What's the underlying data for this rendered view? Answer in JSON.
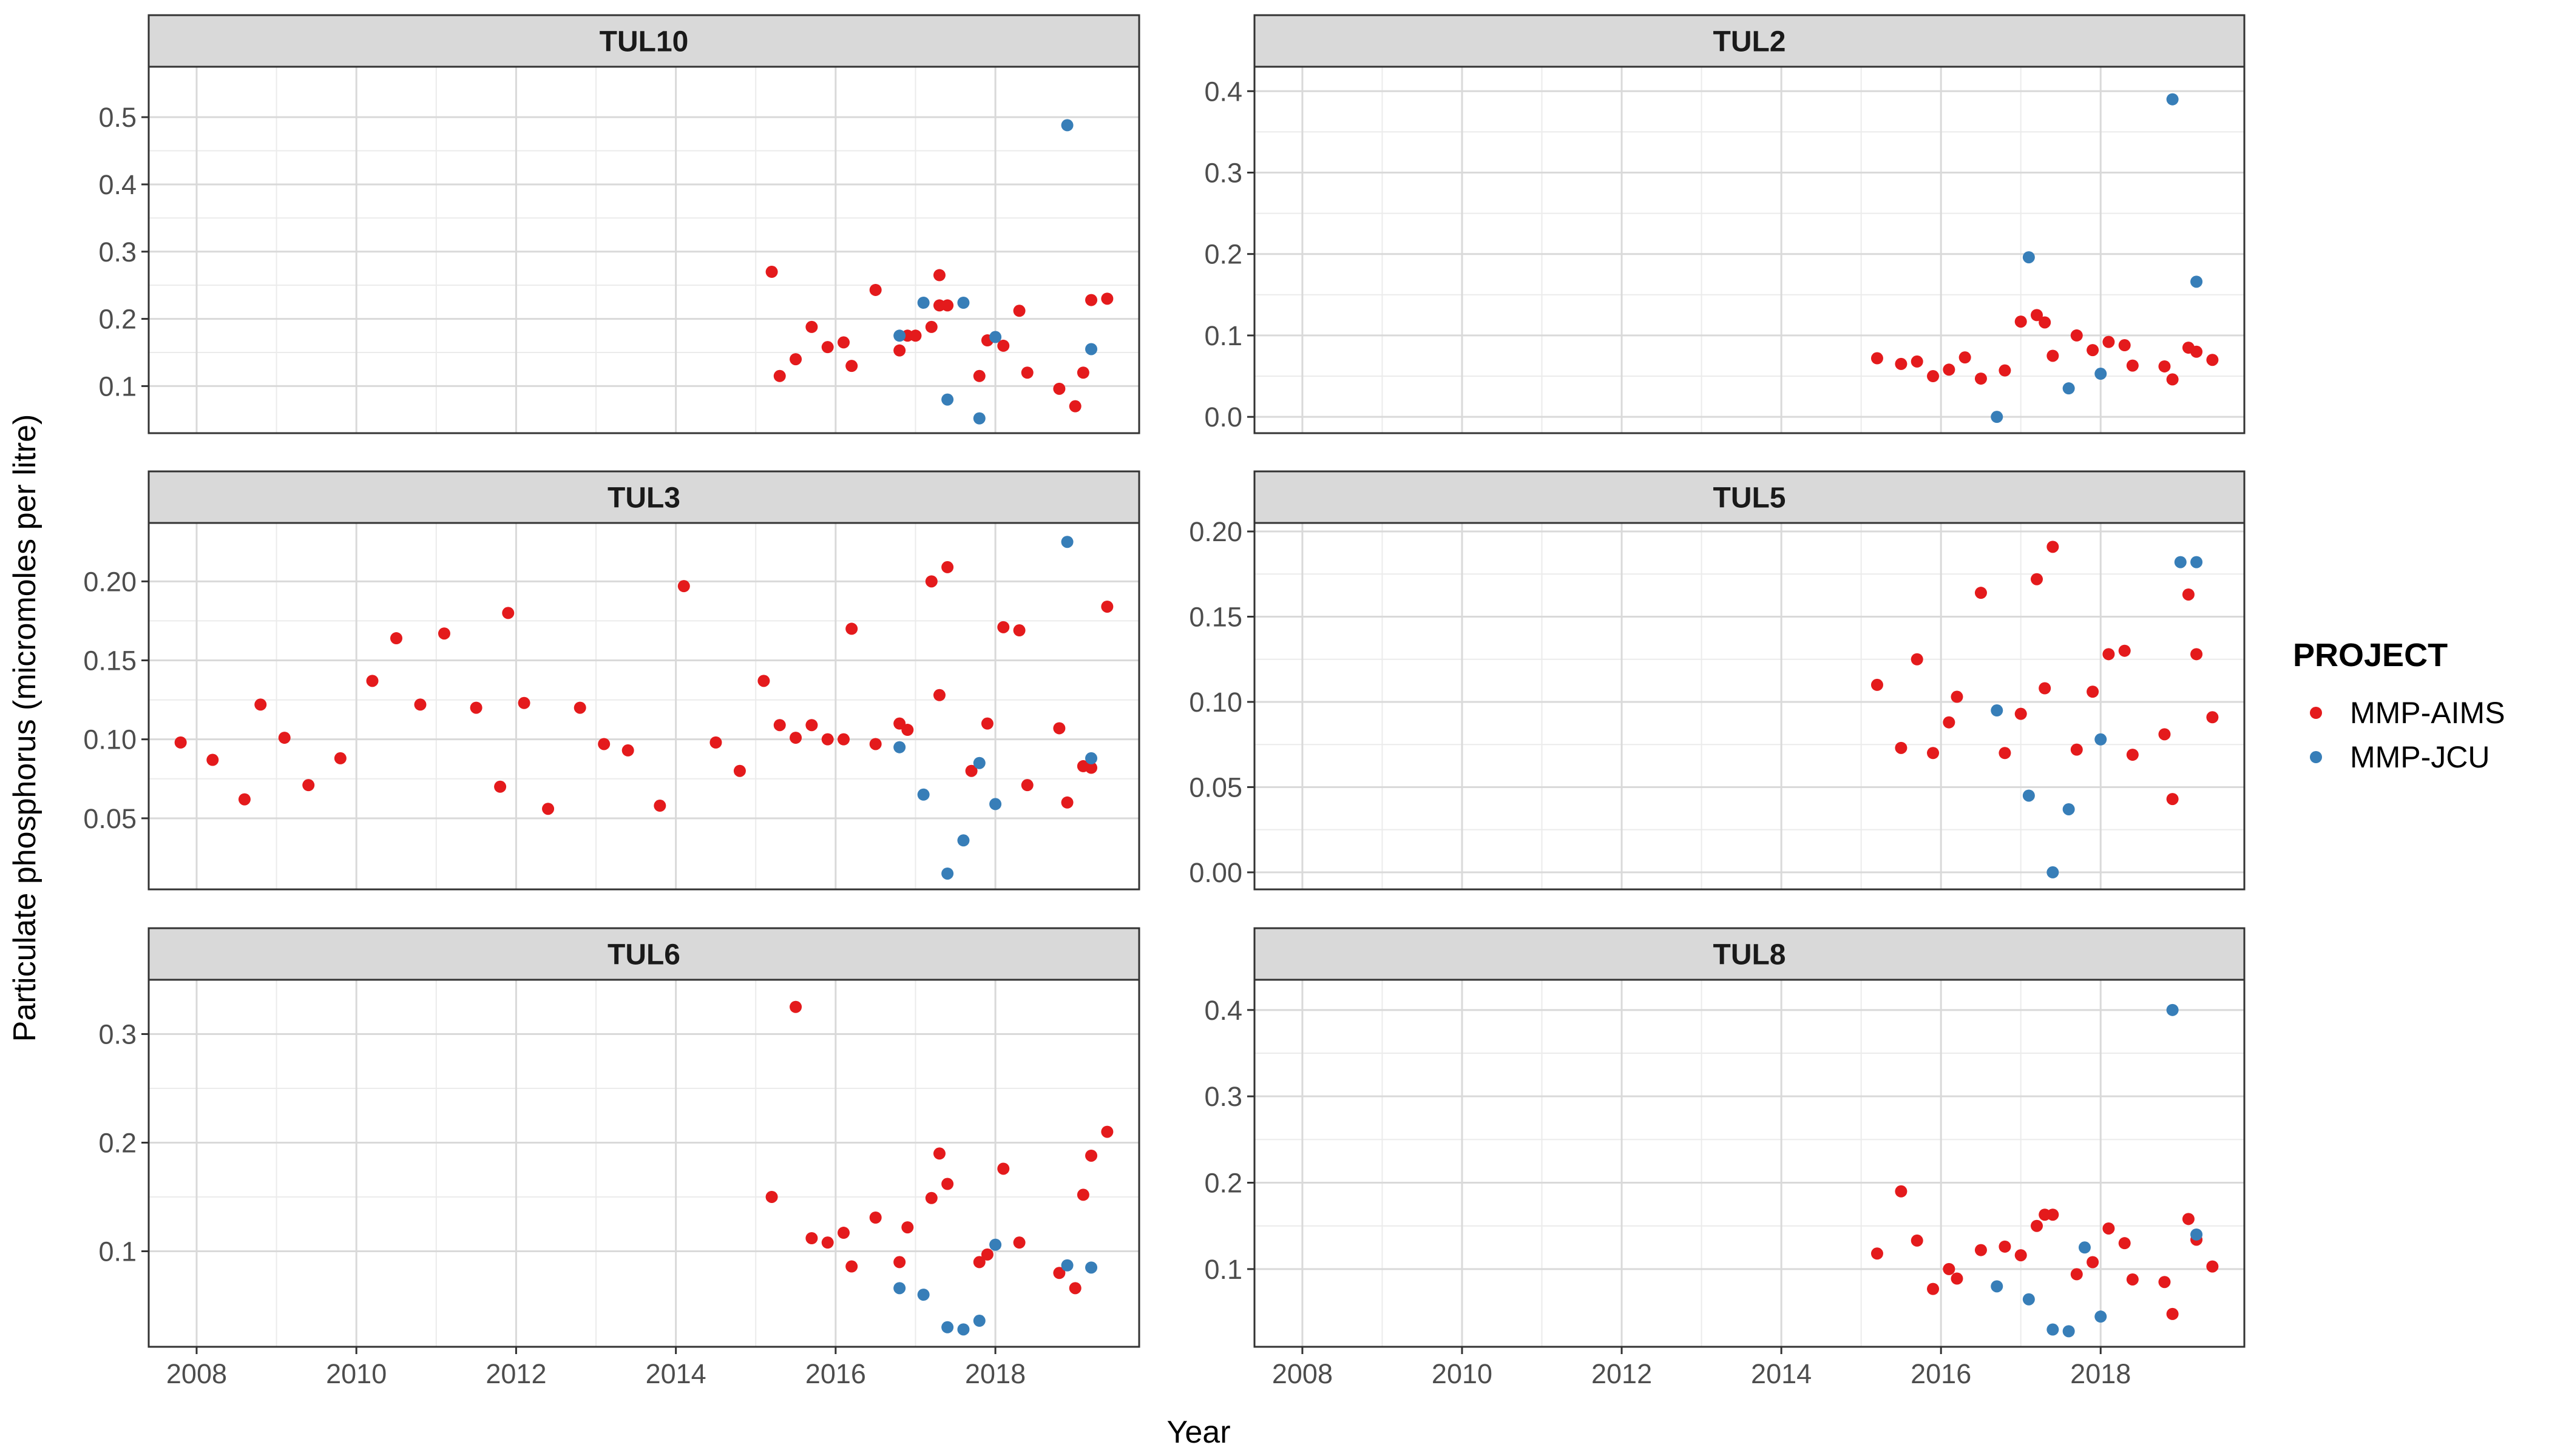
{
  "chart_data": {
    "type": "scatter",
    "xlabel": "Year",
    "ylabel": "Particulate phosphorus (micromoles per litre)",
    "legend": {
      "title": "PROJECT",
      "placement": "right",
      "entries": [
        {
          "name": "MMP-AIMS",
          "color": "#E41A1C"
        },
        {
          "name": "MMP-JCU",
          "color": "#377EB8"
        }
      ]
    },
    "x_axis": {
      "range": [
        2007.4,
        2019.8
      ],
      "ticks": [
        2008,
        2010,
        2012,
        2014,
        2016,
        2018
      ],
      "tick_labels": [
        "2008",
        "2010",
        "2012",
        "2014",
        "2016",
        "2018"
      ]
    },
    "grid": true,
    "panels": [
      {
        "title": "TUL10",
        "ylim": [
          0.03,
          0.575
        ],
        "yticks": [
          0.1,
          0.2,
          0.3,
          0.4,
          0.5
        ],
        "ytick_labels": [
          "0.1",
          "0.2",
          "0.3",
          "0.4",
          "0.5"
        ],
        "series": [
          {
            "name": "MMP-AIMS",
            "x": [
              2015.2,
              2015.3,
              2015.5,
              2015.7,
              2015.9,
              2016.1,
              2016.2,
              2016.5,
              2016.8,
              2016.9,
              2017.0,
              2017.2,
              2017.3,
              2017.3,
              2017.4,
              2017.8,
              2017.9,
              2018.1,
              2018.3,
              2018.4,
              2018.8,
              2019.0,
              2019.1,
              2019.2,
              2019.4
            ],
            "y": [
              0.27,
              0.115,
              0.14,
              0.188,
              0.158,
              0.165,
              0.13,
              0.243,
              0.153,
              0.175,
              0.175,
              0.188,
              0.22,
              0.265,
              0.22,
              0.115,
              0.168,
              0.16,
              0.212,
              0.12,
              0.096,
              0.07,
              0.12,
              0.228,
              0.23
            ]
          },
          {
            "name": "MMP-JCU",
            "x": [
              2016.8,
              2017.1,
              2017.4,
              2017.6,
              2017.8,
              2018.0,
              2018.9,
              2019.2
            ],
            "y": [
              0.175,
              0.224,
              0.08,
              0.224,
              0.052,
              0.173,
              0.488,
              0.155
            ]
          }
        ]
      },
      {
        "title": "TUL2",
        "ylim": [
          -0.02,
          0.43
        ],
        "yticks": [
          0.0,
          0.1,
          0.2,
          0.3,
          0.4
        ],
        "ytick_labels": [
          "0.0",
          "0.1",
          "0.2",
          "0.3",
          "0.4"
        ],
        "series": [
          {
            "name": "MMP-AIMS",
            "x": [
              2015.2,
              2015.5,
              2015.7,
              2015.9,
              2016.1,
              2016.3,
              2016.5,
              2016.8,
              2017.0,
              2017.2,
              2017.3,
              2017.4,
              2017.7,
              2017.9,
              2018.1,
              2018.3,
              2018.4,
              2018.8,
              2018.9,
              2019.1,
              2019.2,
              2019.4
            ],
            "y": [
              0.072,
              0.065,
              0.068,
              0.05,
              0.058,
              0.073,
              0.047,
              0.057,
              0.117,
              0.125,
              0.116,
              0.075,
              0.1,
              0.082,
              0.092,
              0.088,
              0.063,
              0.062,
              0.046,
              0.085,
              0.08,
              0.07
            ]
          },
          {
            "name": "MMP-JCU",
            "x": [
              2016.7,
              2017.1,
              2017.6,
              2018.0,
              2018.9,
              2019.2
            ],
            "y": [
              0.0,
              0.196,
              0.035,
              0.053,
              0.39,
              0.166
            ]
          }
        ]
      },
      {
        "title": "TUL3",
        "ylim": [
          0.005,
          0.237
        ],
        "yticks": [
          0.05,
          0.1,
          0.15,
          0.2
        ],
        "ytick_labels": [
          "0.05",
          "0.10",
          "0.15",
          "0.20"
        ],
        "series": [
          {
            "name": "MMP-AIMS",
            "x": [
              2007.8,
              2008.2,
              2008.6,
              2008.8,
              2009.1,
              2009.4,
              2009.8,
              2010.2,
              2010.5,
              2010.8,
              2011.1,
              2011.5,
              2011.8,
              2011.9,
              2012.1,
              2012.4,
              2012.8,
              2013.1,
              2013.4,
              2013.8,
              2014.1,
              2014.5,
              2014.8,
              2015.1,
              2015.3,
              2015.5,
              2015.7,
              2015.9,
              2016.1,
              2016.2,
              2016.5,
              2016.8,
              2016.9,
              2017.2,
              2017.3,
              2017.4,
              2017.7,
              2017.9,
              2018.1,
              2018.3,
              2018.4,
              2018.8,
              2018.9,
              2019.1,
              2019.2,
              2019.4
            ],
            "y": [
              0.098,
              0.087,
              0.062,
              0.122,
              0.101,
              0.071,
              0.088,
              0.137,
              0.164,
              0.122,
              0.167,
              0.12,
              0.07,
              0.18,
              0.123,
              0.056,
              0.12,
              0.097,
              0.093,
              0.058,
              0.197,
              0.098,
              0.08,
              0.137,
              0.109,
              0.101,
              0.109,
              0.1,
              0.1,
              0.17,
              0.097,
              0.11,
              0.106,
              0.2,
              0.128,
              0.209,
              0.08,
              0.11,
              0.171,
              0.169,
              0.071,
              0.107,
              0.06,
              0.083,
              0.082,
              0.184
            ]
          },
          {
            "name": "MMP-JCU",
            "x": [
              2016.8,
              2017.1,
              2017.4,
              2017.6,
              2017.8,
              2018.0,
              2018.9,
              2019.2
            ],
            "y": [
              0.095,
              0.065,
              0.015,
              0.036,
              0.085,
              0.059,
              0.225,
              0.088
            ]
          }
        ]
      },
      {
        "title": "TUL5",
        "ylim": [
          -0.01,
          0.205
        ],
        "yticks": [
          0.0,
          0.05,
          0.1,
          0.15,
          0.2
        ],
        "ytick_labels": [
          "0.00",
          "0.05",
          "0.10",
          "0.15",
          "0.20"
        ],
        "series": [
          {
            "name": "MMP-AIMS",
            "x": [
              2015.2,
              2015.5,
              2015.7,
              2015.9,
              2016.1,
              2016.2,
              2016.5,
              2016.8,
              2017.0,
              2017.2,
              2017.3,
              2017.4,
              2017.7,
              2017.9,
              2018.1,
              2018.3,
              2018.4,
              2018.8,
              2018.9,
              2019.1,
              2019.2,
              2019.4
            ],
            "y": [
              0.11,
              0.073,
              0.125,
              0.07,
              0.088,
              0.103,
              0.164,
              0.07,
              0.093,
              0.172,
              0.108,
              0.191,
              0.072,
              0.106,
              0.128,
              0.13,
              0.069,
              0.081,
              0.043,
              0.163,
              0.128,
              0.091
            ]
          },
          {
            "name": "MMP-JCU",
            "x": [
              2016.7,
              2017.1,
              2017.4,
              2017.6,
              2018.0,
              2019.0,
              2019.2
            ],
            "y": [
              0.095,
              0.045,
              0.0,
              0.037,
              0.078,
              0.182,
              0.182
            ]
          }
        ]
      },
      {
        "title": "TUL6",
        "ylim": [
          0.012,
          0.35
        ],
        "yticks": [
          0.1,
          0.2,
          0.3
        ],
        "ytick_labels": [
          "0.1",
          "0.2",
          "0.3"
        ],
        "series": [
          {
            "name": "MMP-AIMS",
            "x": [
              2015.2,
              2015.5,
              2015.7,
              2015.9,
              2016.1,
              2016.2,
              2016.5,
              2016.8,
              2016.9,
              2017.2,
              2017.3,
              2017.4,
              2017.8,
              2017.9,
              2018.1,
              2018.3,
              2018.8,
              2019.0,
              2019.1,
              2019.2,
              2019.4
            ],
            "y": [
              0.15,
              0.325,
              0.112,
              0.108,
              0.117,
              0.086,
              0.131,
              0.09,
              0.122,
              0.149,
              0.19,
              0.162,
              0.09,
              0.097,
              0.176,
              0.108,
              0.08,
              0.066,
              0.152,
              0.188,
              0.21
            ]
          },
          {
            "name": "MMP-JCU",
            "x": [
              2016.8,
              2017.1,
              2017.4,
              2017.6,
              2017.8,
              2018.0,
              2018.9,
              2019.2
            ],
            "y": [
              0.066,
              0.06,
              0.03,
              0.028,
              0.036,
              0.106,
              0.087,
              0.085
            ]
          }
        ]
      },
      {
        "title": "TUL8",
        "ylim": [
          0.01,
          0.435
        ],
        "yticks": [
          0.1,
          0.2,
          0.3,
          0.4
        ],
        "ytick_labels": [
          "0.1",
          "0.2",
          "0.3",
          "0.4"
        ],
        "series": [
          {
            "name": "MMP-AIMS",
            "x": [
              2015.2,
              2015.5,
              2015.7,
              2015.9,
              2016.1,
              2016.2,
              2016.5,
              2016.8,
              2017.0,
              2017.2,
              2017.3,
              2017.4,
              2017.7,
              2017.9,
              2018.1,
              2018.3,
              2018.4,
              2018.8,
              2018.9,
              2019.1,
              2019.2,
              2019.4
            ],
            "y": [
              0.118,
              0.19,
              0.133,
              0.077,
              0.1,
              0.089,
              0.122,
              0.126,
              0.116,
              0.15,
              0.163,
              0.163,
              0.094,
              0.108,
              0.147,
              0.13,
              0.088,
              0.085,
              0.048,
              0.158,
              0.134,
              0.103
            ]
          },
          {
            "name": "MMP-JCU",
            "x": [
              2016.7,
              2017.1,
              2017.4,
              2017.6,
              2017.8,
              2018.0,
              2018.9,
              2019.2
            ],
            "y": [
              0.08,
              0.065,
              0.03,
              0.028,
              0.125,
              0.045,
              0.4,
              0.14
            ]
          }
        ]
      }
    ]
  }
}
